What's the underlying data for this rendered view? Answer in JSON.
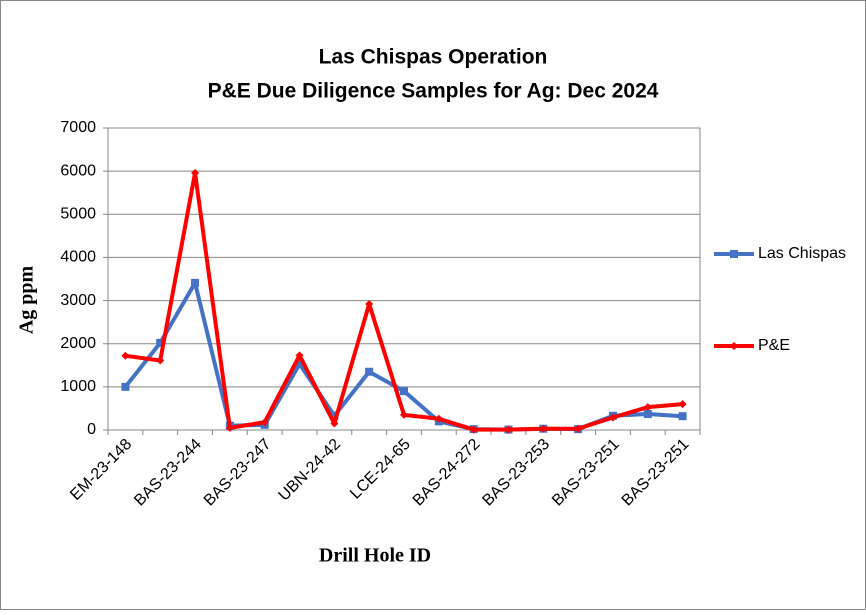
{
  "chart_data": {
    "type": "line",
    "title": [
      "Las Chispas Operation",
      "P&E Due Diligence Samples for Ag: Dec 2024"
    ],
    "x_label": "Drill  Hole ID",
    "y_label": "Ag  ppm",
    "categories": [
      "EM-23-148",
      null,
      "BAS-23-244",
      null,
      "BAS-23-247",
      null,
      "UBN-24-42",
      null,
      "LCE-24-65",
      null,
      "BAS-24-272",
      null,
      "BAS-23-253",
      null,
      "BAS-23-251",
      null,
      "BAS-23-251"
    ],
    "series": [
      {
        "name": "Las Chispas",
        "color": "#4472c4",
        "marker": "square",
        "values": [
          1000,
          2020,
          3410,
          100,
          120,
          1530,
          330,
          1350,
          900,
          200,
          20,
          10,
          30,
          20,
          330,
          370,
          320
        ]
      },
      {
        "name": "P&E",
        "color": "#ff0000",
        "marker": "diamond",
        "values": [
          1720,
          1610,
          5960,
          50,
          180,
          1730,
          150,
          2920,
          350,
          260,
          10,
          10,
          30,
          30,
          290,
          530,
          600
        ]
      }
    ],
    "ylim": [
      0,
      7000
    ],
    "yticks": [
      0,
      1000,
      2000,
      3000,
      4000,
      5000,
      6000,
      7000
    ],
    "grid": true,
    "legend": "right"
  }
}
